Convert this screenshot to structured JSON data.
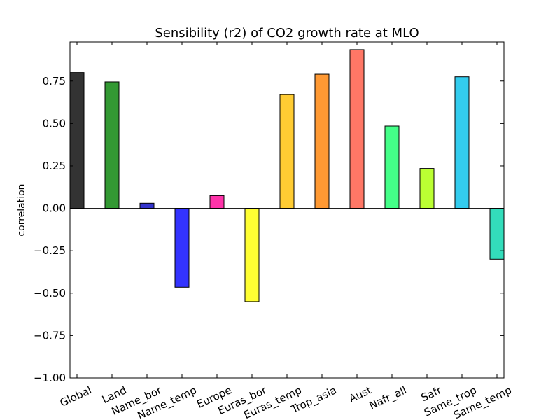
{
  "chart_data": {
    "type": "bar",
    "title": "Sensibility (r2) of CO2 growth rate at MLO",
    "xlabel": "",
    "ylabel": "correlation",
    "ylim": [
      -1.0,
      0.98
    ],
    "yticks": [
      -1.0,
      -0.75,
      -0.5,
      -0.25,
      0.0,
      0.25,
      0.5,
      0.75
    ],
    "ytick_labels": [
      "−1.00",
      "−0.75",
      "−0.50",
      "−0.25",
      "0.00",
      "0.25",
      "0.50",
      "0.75"
    ],
    "grid": false,
    "categories": [
      "Global",
      "Land",
      "Name_bor",
      "Name_temp",
      "Europe",
      "Euras_bor",
      "Euras_temp",
      "Trop_asia",
      "Aust",
      "Nafr_all",
      "Safr",
      "Same_trop",
      "Same_temp"
    ],
    "values": [
      0.8,
      0.745,
      0.03,
      -0.465,
      0.075,
      -0.55,
      0.67,
      0.79,
      0.935,
      0.485,
      0.235,
      0.775,
      -0.3
    ],
    "colors": [
      "#333333",
      "#339933",
      "#3333cc",
      "#3333ff",
      "#ff33aa",
      "#ffff33",
      "#ffcc33",
      "#ff9933",
      "#ff7766",
      "#44ff88",
      "#bbff33",
      "#33ccee",
      "#33ddbb"
    ]
  }
}
